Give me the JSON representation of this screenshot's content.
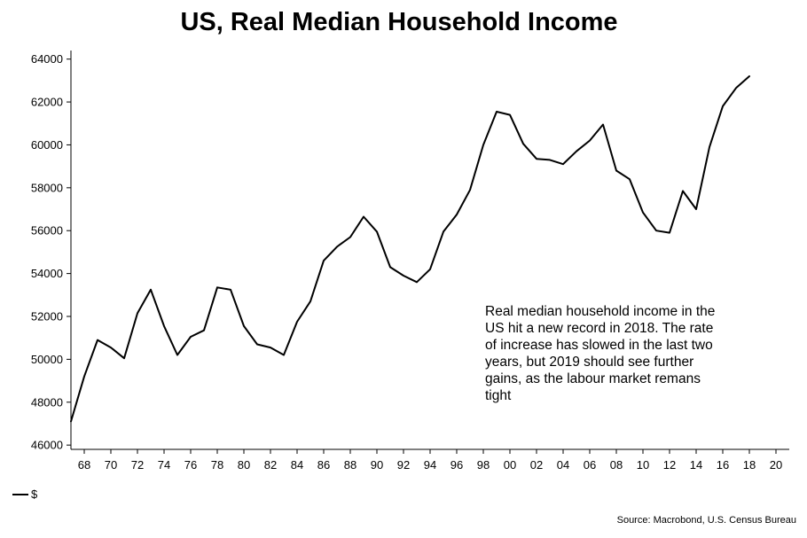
{
  "chart_data": {
    "type": "line",
    "title": "US, Real Median Household Income",
    "xlabel": "",
    "ylabel": "",
    "ylim": [
      45800,
      64400
    ],
    "xlim": [
      1967,
      2021
    ],
    "yticks": [
      46000,
      48000,
      50000,
      52000,
      54000,
      56000,
      58000,
      60000,
      62000,
      64000
    ],
    "xticks": [
      1968,
      1970,
      1972,
      1974,
      1976,
      1978,
      1980,
      1982,
      1984,
      1986,
      1988,
      1990,
      1992,
      1994,
      1996,
      1998,
      2000,
      2002,
      2004,
      2006,
      2008,
      2010,
      2012,
      2014,
      2016,
      2018,
      2020
    ],
    "xtick_labels": [
      "68",
      "70",
      "72",
      "74",
      "76",
      "78",
      "80",
      "82",
      "84",
      "86",
      "88",
      "90",
      "92",
      "94",
      "96",
      "98",
      "00",
      "02",
      "04",
      "06",
      "08",
      "10",
      "12",
      "14",
      "16",
      "18",
      "20"
    ],
    "grid": false,
    "legend_position": "bottom-left",
    "series": [
      {
        "name": "$",
        "color": "#000000",
        "x": [
          1967,
          1968,
          1969,
          1970,
          1971,
          1972,
          1973,
          1974,
          1975,
          1976,
          1977,
          1978,
          1979,
          1980,
          1981,
          1982,
          1983,
          1984,
          1985,
          1986,
          1987,
          1988,
          1989,
          1990,
          1991,
          1992,
          1993,
          1994,
          1995,
          1996,
          1997,
          1998,
          1999,
          2000,
          2001,
          2002,
          2003,
          2004,
          2005,
          2006,
          2007,
          2008,
          2009,
          2010,
          2011,
          2012,
          2013,
          2014,
          2015,
          2016,
          2017,
          2018
        ],
        "values": [
          47100,
          49200,
          50900,
          50550,
          50050,
          52150,
          53250,
          51550,
          50200,
          51050,
          51350,
          53350,
          53250,
          51550,
          50700,
          50550,
          50200,
          51750,
          52700,
          54600,
          55250,
          55700,
          56650,
          55950,
          54300,
          53900,
          53600,
          54200,
          55950,
          56750,
          57900,
          60000,
          61550,
          61400,
          60050,
          59350,
          59300,
          59100,
          59700,
          60200,
          60950,
          58800,
          58400,
          56850,
          56000,
          55900,
          57850,
          57000,
          59900,
          61800,
          62650,
          63200
        ]
      }
    ],
    "annotation": "Real median household income in the US hit a new record in 2018. The rate of increase has slowed in the last two years, but 2019 should see further gains, as the labour market remans tight",
    "source": "Source: Macrobond, U.S. Census Bureau"
  }
}
